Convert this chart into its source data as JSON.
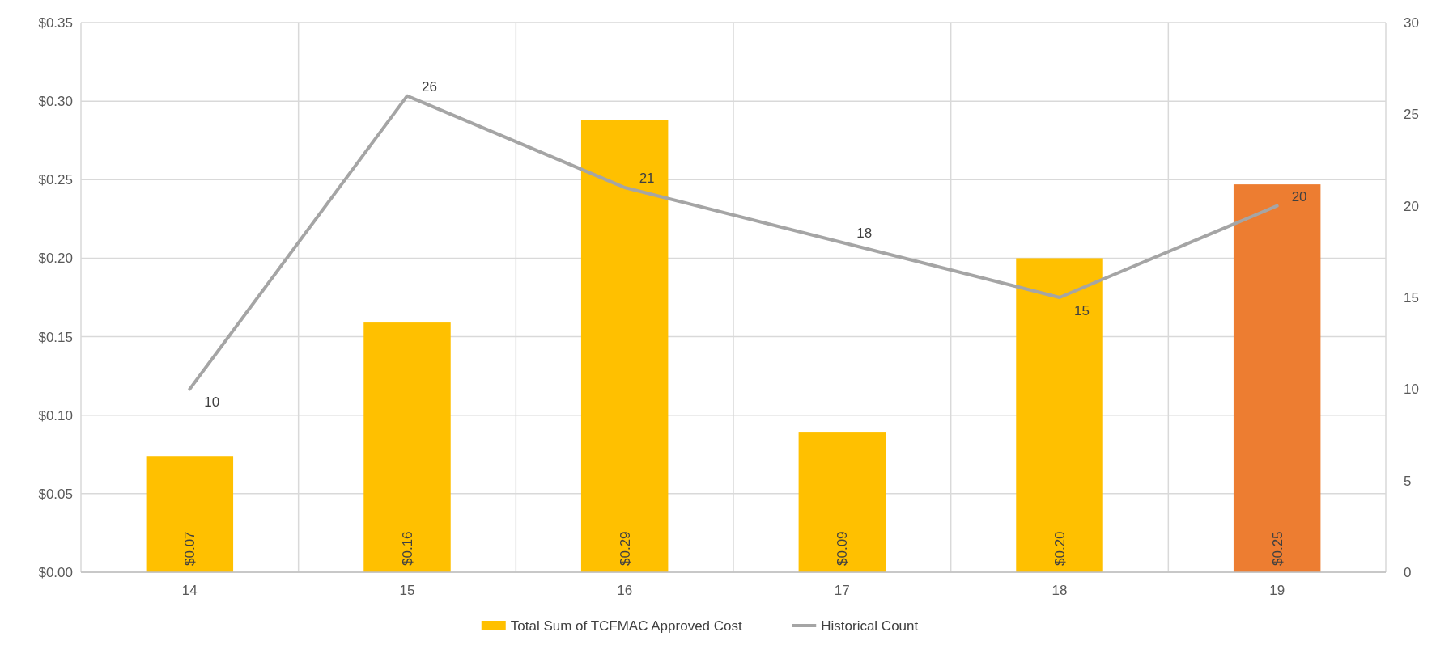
{
  "chart_data": {
    "type": "bar",
    "categories": [
      "14",
      "15",
      "16",
      "17",
      "18",
      "19"
    ],
    "series": [
      {
        "name": "Total Sum of TCFMAC Approved Cost",
        "color": "#ffc000",
        "colors": [
          "#ffc000",
          "#ffc000",
          "#ffc000",
          "#ffc000",
          "#ffc000",
          "#ed7d31"
        ],
        "values": [
          0.074,
          0.159,
          0.288,
          0.089,
          0.2,
          0.247
        ],
        "value_labels": [
          "$0.07",
          "$0.16",
          "$0.29",
          "$0.09",
          "$0.20",
          "$0.25"
        ]
      },
      {
        "name": "Historical Count",
        "type": "line",
        "axis": "y2",
        "color": "#a5a5a5",
        "values": [
          10,
          26,
          21,
          18,
          15,
          20
        ],
        "value_labels": [
          "10",
          "26",
          "21",
          "18",
          "15",
          "20"
        ]
      }
    ],
    "ylim": [
      0,
      0.35
    ],
    "yticks": [
      {
        "value": 0,
        "label": "$0.00"
      },
      {
        "value": 0.05,
        "label": "$0.05"
      },
      {
        "value": 0.1,
        "label": "$0.10"
      },
      {
        "value": 0.15,
        "label": "$0.15"
      },
      {
        "value": 0.2,
        "label": "$0.20"
      },
      {
        "value": 0.25,
        "label": "$0.25"
      },
      {
        "value": 0.3,
        "label": "$0.30"
      },
      {
        "value": 0.35,
        "label": "$0.35"
      }
    ],
    "y2lim": [
      0,
      30
    ],
    "y2ticks": [
      0,
      5,
      10,
      15,
      20,
      25,
      30
    ],
    "grid": true,
    "legend": "bottom",
    "marker": "none",
    "line_style": "solid"
  }
}
